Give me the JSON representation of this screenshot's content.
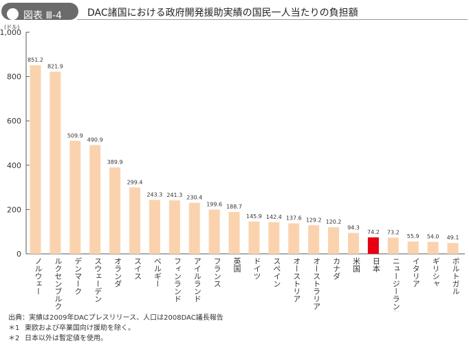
{
  "header": {
    "label": "図表 Ⅲ-4",
    "title": "DAC諸国における政府開発援助実績の国民一人当たりの負担額"
  },
  "chart_data": {
    "type": "bar",
    "unit_label": "(ドル)",
    "categories": [
      "ノルウェー",
      "ルクセンブルク",
      "デンマーク",
      "スウェーデン",
      "オランダ",
      "スイス",
      "ベルギー",
      "フィンランド",
      "アイルランド",
      "フランス",
      "英国",
      "ドイツ",
      "スペイン",
      "オーストリア",
      "オーストラリア",
      "カナダ",
      "米国",
      "日本",
      "ニュージーランド",
      "イタリア",
      "ギリシャ",
      "ポルトガル"
    ],
    "values": [
      851.2,
      821.9,
      509.9,
      490.9,
      389.9,
      299.4,
      243.3,
      241.3,
      230.4,
      199.6,
      188.7,
      145.9,
      142.4,
      137.6,
      129.2,
      120.2,
      94.3,
      74.2,
      73.2,
      55.9,
      54.0,
      49.1
    ],
    "value_labels": [
      "851.2",
      "821.9",
      "509.9",
      "490.9",
      "389.9",
      "299.4",
      "243.3",
      "241.3",
      "230.4",
      "199.6",
      "188.7",
      "145.9",
      "142.4",
      "137.6",
      "129.2",
      "120.2",
      "94.3",
      "74.2",
      "73.2",
      "55.9",
      "54.0",
      "49.1"
    ],
    "highlight_category": "日本",
    "yticks": [
      0,
      200,
      400,
      600,
      800,
      1000
    ],
    "ytick_labels": [
      "0",
      "200",
      "400",
      "600",
      "800",
      "1,000"
    ],
    "ylim": [
      0,
      1000
    ],
    "grid": false,
    "colors": {
      "bar": "#fad3ae",
      "highlight": "#e60012",
      "axis": "#555555"
    }
  },
  "notes": [
    {
      "mark": "出典：",
      "text": "実績は2009年DACプレスリリース、人口は2008DAC議長報告"
    },
    {
      "mark": "＊1",
      "text": "東欧および卒業国向け援助を除く。"
    },
    {
      "mark": "＊2",
      "text": "日本以外は暫定値を使用。"
    }
  ]
}
